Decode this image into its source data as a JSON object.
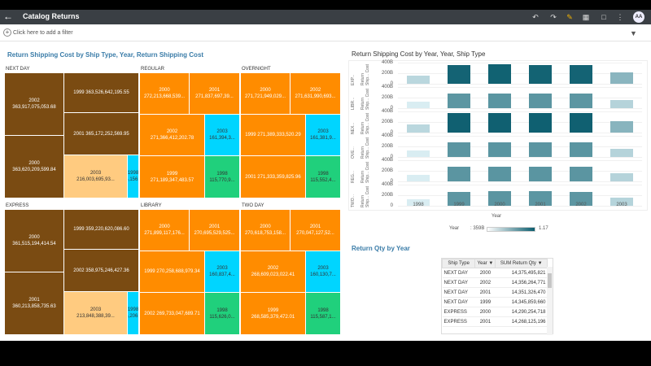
{
  "app": {
    "title": "Catalog Returns",
    "avatar": "AA"
  },
  "filter": {
    "hint": "Click here to add a filter"
  },
  "treemap": {
    "title": "Return Shipping Cost by Ship Type, Year, Return Shipping Cost",
    "colors": {
      "brown": "#7a4b12",
      "orange": "#ff8c00",
      "cyan": "#00d5ff",
      "green": "#20d07c",
      "peach": "#ffcb80"
    },
    "panels": [
      {
        "name": "NEXT DAY",
        "cells": [
          {
            "label": "2002\n363,917,075,053.68",
            "color": "brown"
          },
          {
            "label": "2000\n363,620,209,599.84",
            "color": "brown"
          },
          {
            "label": "1999 363,526,642,195.55",
            "color": "brown"
          },
          {
            "label": "2001 365,172,252,569.95",
            "color": "brown"
          },
          {
            "label": "2003\n216,003,695,93...",
            "color": "peach"
          },
          {
            "label": "1998\n154,156,1...",
            "color": "cyan"
          }
        ]
      },
      {
        "name": "REGULAR",
        "cells": [
          {
            "label": "2000\n272,213,668,539...",
            "color": "orange"
          },
          {
            "label": "2001\n271,837,697,39...",
            "color": "orange"
          },
          {
            "label": "2002\n271,366,412,202.78",
            "color": "orange"
          },
          {
            "label": "2003\n161,394,3...",
            "color": "cyan"
          },
          {
            "label": "1999\n271,189,347,483.57",
            "color": "orange"
          },
          {
            "label": "1998\n115,770,9...",
            "color": "green"
          }
        ]
      },
      {
        "name": "OVERNIGHT",
        "cells": [
          {
            "label": "2000\n271,721,949,029...",
            "color": "orange"
          },
          {
            "label": "2002\n271,631,990,693...",
            "color": "orange"
          },
          {
            "label": "1999 271,389,333,520.29",
            "color": "orange"
          },
          {
            "label": "2003\n161,381,9...",
            "color": "cyan"
          },
          {
            "label": "2001 271,333,359,825.96",
            "color": "orange"
          },
          {
            "label": "1998\n115,552,4...",
            "color": "green"
          }
        ]
      },
      {
        "name": "EXPRESS",
        "cells": [
          {
            "label": "2000\n361,515,194,414.54",
            "color": "brown"
          },
          {
            "label": "2001\n360,213,858,735.63",
            "color": "brown"
          },
          {
            "label": "1999 359,220,620,086.60",
            "color": "brown"
          },
          {
            "label": "2002 358,975,246,427.36",
            "color": "brown"
          },
          {
            "label": "2003\n213,848,388,39...",
            "color": "peach"
          },
          {
            "label": "1998\n154,206,5...",
            "color": "cyan"
          }
        ]
      },
      {
        "name": "LIBRARY",
        "cells": [
          {
            "label": "2000\n271,899,117,176...",
            "color": "orange"
          },
          {
            "label": "2001\n270,695,529,525...",
            "color": "orange"
          },
          {
            "label": "1999 270,258,688,979.34",
            "color": "orange"
          },
          {
            "label": "2003\n160,837,4...",
            "color": "cyan"
          },
          {
            "label": "2002 269,733,047,689.71",
            "color": "orange"
          },
          {
            "label": "1998\n115,626,0...",
            "color": "green"
          }
        ]
      },
      {
        "name": "TWO DAY",
        "cells": [
          {
            "label": "2000\n270,618,753,158...",
            "color": "orange"
          },
          {
            "label": "2001\n270,047,127,52...",
            "color": "orange"
          },
          {
            "label": "2002\n268,609,023,022.41",
            "color": "orange"
          },
          {
            "label": "2003\n160,130,7...",
            "color": "cyan"
          },
          {
            "label": "1999\n268,585,379,472.01",
            "color": "orange"
          },
          {
            "label": "1998\n115,587,1...",
            "color": "green"
          }
        ]
      }
    ]
  },
  "chart_data": {
    "type": "bar",
    "title": "Return Shipping Cost by Year, Year, Ship Type",
    "xlabel": "Year",
    "categories": [
      "1998",
      "1999",
      "2000",
      "2001",
      "2002",
      "2003"
    ],
    "y_ticks": [
      "400B",
      "200B",
      "0"
    ],
    "ylim": [
      0,
      400
    ],
    "rows": [
      {
        "label": "EXP...",
        "ylabel": "Return Ship... Cost",
        "values": [
          154,
          359,
          362,
          360,
          359,
          214
        ]
      },
      {
        "label": "LIBR...",
        "ylabel": "Return Ship... Cost",
        "values": [
          116,
          270,
          272,
          271,
          270,
          161
        ]
      },
      {
        "label": "NEX...",
        "ylabel": "Return Ship... Cost",
        "values": [
          154,
          364,
          364,
          365,
          364,
          216
        ]
      },
      {
        "label": "OVE...",
        "ylabel": "Return Ship... Cost",
        "values": [
          116,
          271,
          272,
          271,
          272,
          161
        ]
      },
      {
        "label": "REG...",
        "ylabel": "Return Ship... Cost",
        "values": [
          116,
          271,
          272,
          272,
          271,
          161
        ]
      },
      {
        "label": "TWO...",
        "ylabel": "Return Ship... Cost",
        "values": [
          116,
          269,
          271,
          270,
          269,
          160
        ]
      }
    ],
    "legend": {
      "title": "Year",
      "min": ": 359B",
      "max": "1.17",
      "from": "#ffffff",
      "to": "#0b5d6e"
    }
  },
  "qty": {
    "title": "Return Qty by Year",
    "headers": [
      "Ship Type",
      "Year ▼",
      "SUM Return Qty ▼"
    ],
    "rows": [
      [
        "NEXT DAY",
        "2000",
        "14,375,495,821"
      ],
      [
        "NEXT DAY",
        "2002",
        "14,356,264,771"
      ],
      [
        "NEXT DAY",
        "2001",
        "14,351,326,470"
      ],
      [
        "NEXT DAY",
        "1999",
        "14,345,859,660"
      ],
      [
        "EXPRESS",
        "2000",
        "14,290,254,718"
      ],
      [
        "EXPRESS",
        "2001",
        "14,268,125,196"
      ]
    ]
  }
}
